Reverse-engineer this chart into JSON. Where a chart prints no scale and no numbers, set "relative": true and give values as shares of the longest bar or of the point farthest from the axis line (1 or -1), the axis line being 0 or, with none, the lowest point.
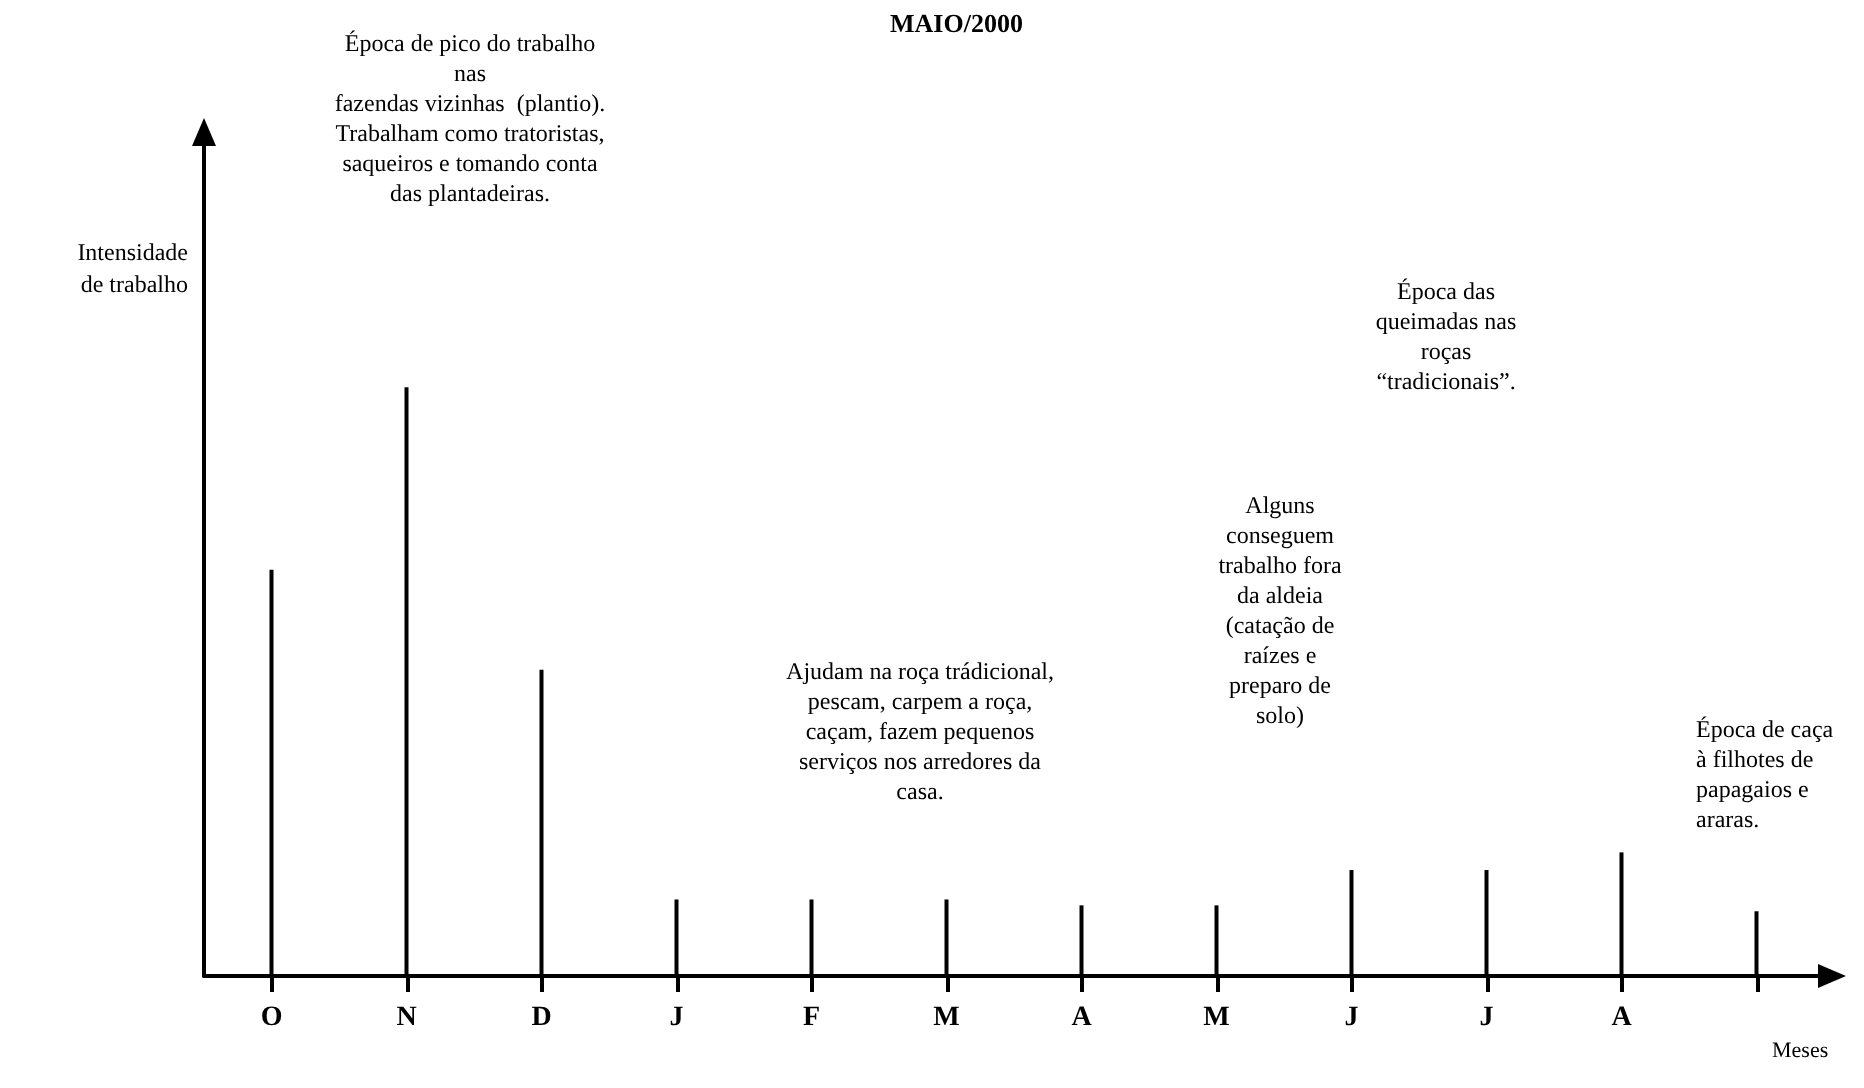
{
  "chart_data": {
    "type": "bar",
    "relative": true,
    "title": "MAIO/2000",
    "xlabel": "Meses",
    "ylabel": "Intensidade\nde trabalho",
    "categories": [
      "O",
      "N",
      "D",
      "J",
      "F",
      "M",
      "A",
      "M",
      "J",
      "J",
      "A",
      null
    ],
    "values": [
      0.69,
      1,
      0.52,
      0.13,
      0.13,
      0.13,
      0.12,
      0.12,
      0.18,
      0.18,
      0.21,
      0.11
    ],
    "color": "#000000",
    "annotations": [
      "Época de pico do trabalho\nnas\nfazendas vizinhas  (plantio).\nTrabalham como tratoristas,\nsaqueiros e tomando conta\ndas plantadeiras.",
      "Época das\nqueimadas nas\nroças\n“tradicionais”.",
      "Ajudam na roça trádicional,\npescam, carpem a roça,\ncaçam, fazem pequenos\nserviços nos arredores da\ncasa.",
      "Alguns\nconseguem\ntrabalho fora\nda aldeia\n(catação de\nraízes e\npreparo de\nsolo)",
      "Época de caça\nà filhotes de\npapagaios e\nararas."
    ]
  }
}
